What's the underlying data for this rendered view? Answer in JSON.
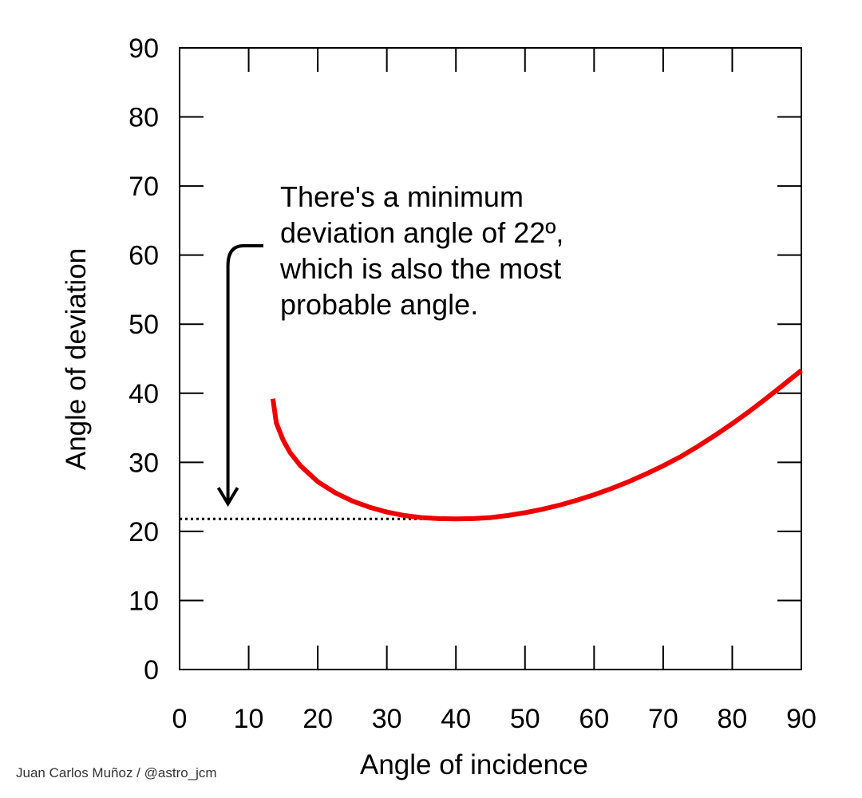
{
  "chart_data": {
    "type": "line",
    "title": "",
    "xlabel": "Angle of incidence",
    "ylabel": "Angle of deviation",
    "xlim": [
      0,
      90
    ],
    "ylim": [
      0,
      90
    ],
    "x_ticks": [
      0,
      10,
      20,
      30,
      40,
      50,
      60,
      70,
      80,
      90
    ],
    "y_ticks": [
      0,
      10,
      20,
      30,
      40,
      50,
      60,
      70,
      80,
      90
    ],
    "grid": false,
    "legend": "none",
    "series": [
      {
        "color": "#ee0000",
        "x": [
          13.5,
          14,
          15,
          16,
          17.5,
          20,
          22.5,
          25,
          27.5,
          30,
          32.5,
          35,
          37.5,
          40,
          42.5,
          45,
          47.5,
          50,
          52.5,
          55,
          57.5,
          60,
          62.5,
          65,
          67.5,
          70,
          72.5,
          75,
          77.5,
          80,
          82.5,
          85,
          87.5,
          90
        ],
        "y": [
          39.2,
          35.7,
          33.2,
          31.4,
          29.5,
          27.2,
          25.6,
          24.4,
          23.5,
          22.8,
          22.3,
          22.0,
          21.85,
          21.8,
          21.85,
          22.0,
          22.3,
          22.7,
          23.2,
          23.8,
          24.5,
          25.3,
          26.2,
          27.2,
          28.3,
          29.5,
          30.8,
          32.3,
          33.9,
          35.6,
          37.4,
          39.3,
          41.3,
          43.3
        ]
      }
    ],
    "reference_line": {
      "y": 21.8,
      "x_from": 0,
      "x_to": 41,
      "style": "dotted",
      "color": "#000000"
    },
    "annotation": {
      "lines": [
        "There's a minimum",
        "deviation angle of 22º,",
        "which is also the most",
        "probable angle."
      ],
      "arrow_x": 7,
      "arrow_y_top": 61,
      "arrow_y_bottom": 24
    }
  },
  "credit": "Juan Carlos Muñoz / @astro_jcm"
}
